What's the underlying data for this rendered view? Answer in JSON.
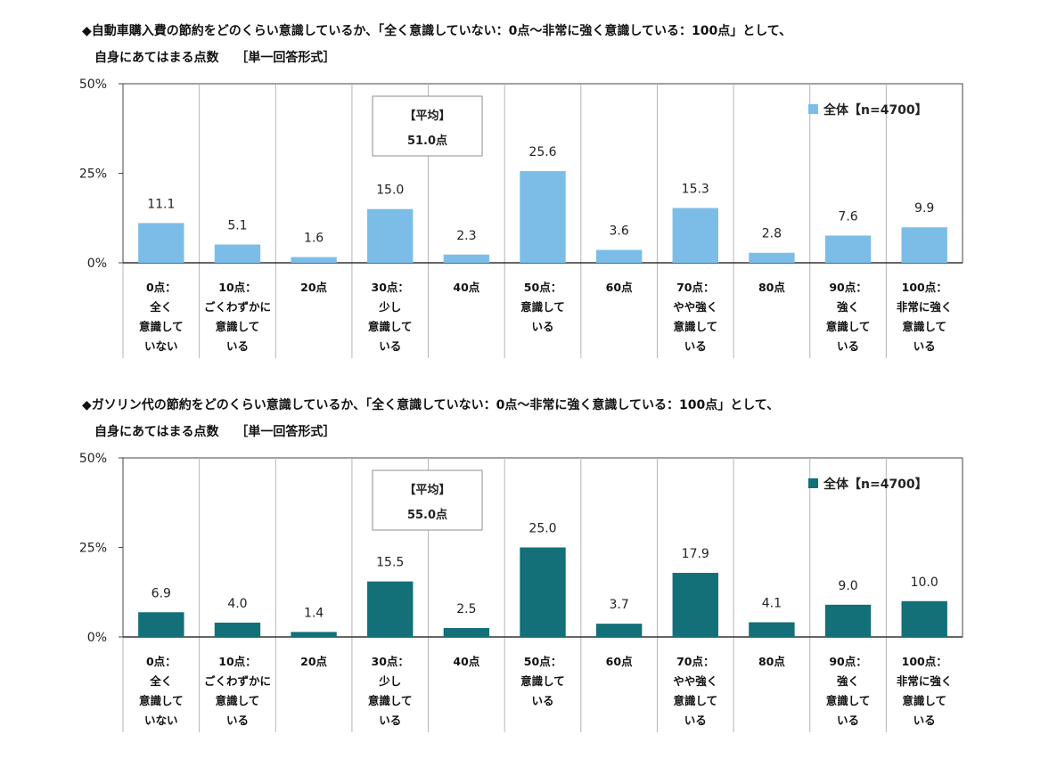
{
  "chart_data": [
    {
      "type": "bar",
      "title": "◆自動車購入費の節約をどのくらい意識しているか、「全く意識していない：0点～非常に強く意識している：100点」として、",
      "subtitle": "自身にあてはまる点数　 ［単一回答形式］",
      "categories": [
        [
          "0点：",
          "全く",
          "意識して",
          "いない"
        ],
        [
          "10点：",
          "ごくわずかに",
          "意識して",
          "いる"
        ],
        [
          "20点"
        ],
        [
          "30点：",
          "少し",
          "意識して",
          "いる"
        ],
        [
          "40点"
        ],
        [
          "50点：",
          "意識して",
          "いる"
        ],
        [
          "60点"
        ],
        [
          "70点：",
          "やや強く",
          "意識して",
          "いる"
        ],
        [
          "80点"
        ],
        [
          "90点：",
          "強く",
          "意識して",
          "いる"
        ],
        [
          "100点：",
          "非常に強く",
          "意識して",
          "いる"
        ]
      ],
      "series": [
        {
          "name": "全体【n=4700】",
          "values": [
            11.1,
            5.1,
            1.6,
            15.0,
            2.3,
            25.6,
            3.6,
            15.3,
            2.8,
            7.6,
            9.9
          ]
        }
      ],
      "value_labels": [
        "11.1",
        "5.1",
        "1.6",
        "15.0",
        "2.3",
        "25.6",
        "3.6",
        "15.3",
        "2.8",
        "7.6",
        "9.9"
      ],
      "average_box": {
        "label": "【平均】",
        "value": "51.0点"
      },
      "yticks": [
        "0%",
        "25%",
        "50%"
      ],
      "ylim": [
        0,
        50
      ],
      "color": "#7cbde8",
      "legend_position": "top-right",
      "grid": "vertical"
    },
    {
      "type": "bar",
      "title": "◆ガソリン代の節約をどのくらい意識しているか、「全く意識していない：0点～非常に強く意識している：100点」として、",
      "subtitle": "自身にあてはまる点数　 ［単一回答形式］",
      "categories": [
        [
          "0点：",
          "全く",
          "意識して",
          "いない"
        ],
        [
          "10点：",
          "ごくわずかに",
          "意識して",
          "いる"
        ],
        [
          "20点"
        ],
        [
          "30点：",
          "少し",
          "意識して",
          "いる"
        ],
        [
          "40点"
        ],
        [
          "50点：",
          "意識して",
          "いる"
        ],
        [
          "60点"
        ],
        [
          "70点：",
          "やや強く",
          "意識して",
          "いる"
        ],
        [
          "80点"
        ],
        [
          "90点：",
          "強く",
          "意識して",
          "いる"
        ],
        [
          "100点：",
          "非常に強く",
          "意識して",
          "いる"
        ]
      ],
      "series": [
        {
          "name": "全体【n=4700】",
          "values": [
            6.9,
            4.0,
            1.4,
            15.5,
            2.5,
            25.0,
            3.7,
            17.9,
            4.1,
            9.0,
            10.0
          ]
        }
      ],
      "value_labels": [
        "6.9",
        "4.0",
        "1.4",
        "15.5",
        "2.5",
        "25.0",
        "3.7",
        "17.9",
        "4.1",
        "9.0",
        "10.0"
      ],
      "average_box": {
        "label": "【平均】",
        "value": "55.0点"
      },
      "yticks": [
        "0%",
        "25%",
        "50%"
      ],
      "ylim": [
        0,
        50
      ],
      "color": "#136f78",
      "legend_position": "top-right",
      "grid": "vertical"
    }
  ]
}
